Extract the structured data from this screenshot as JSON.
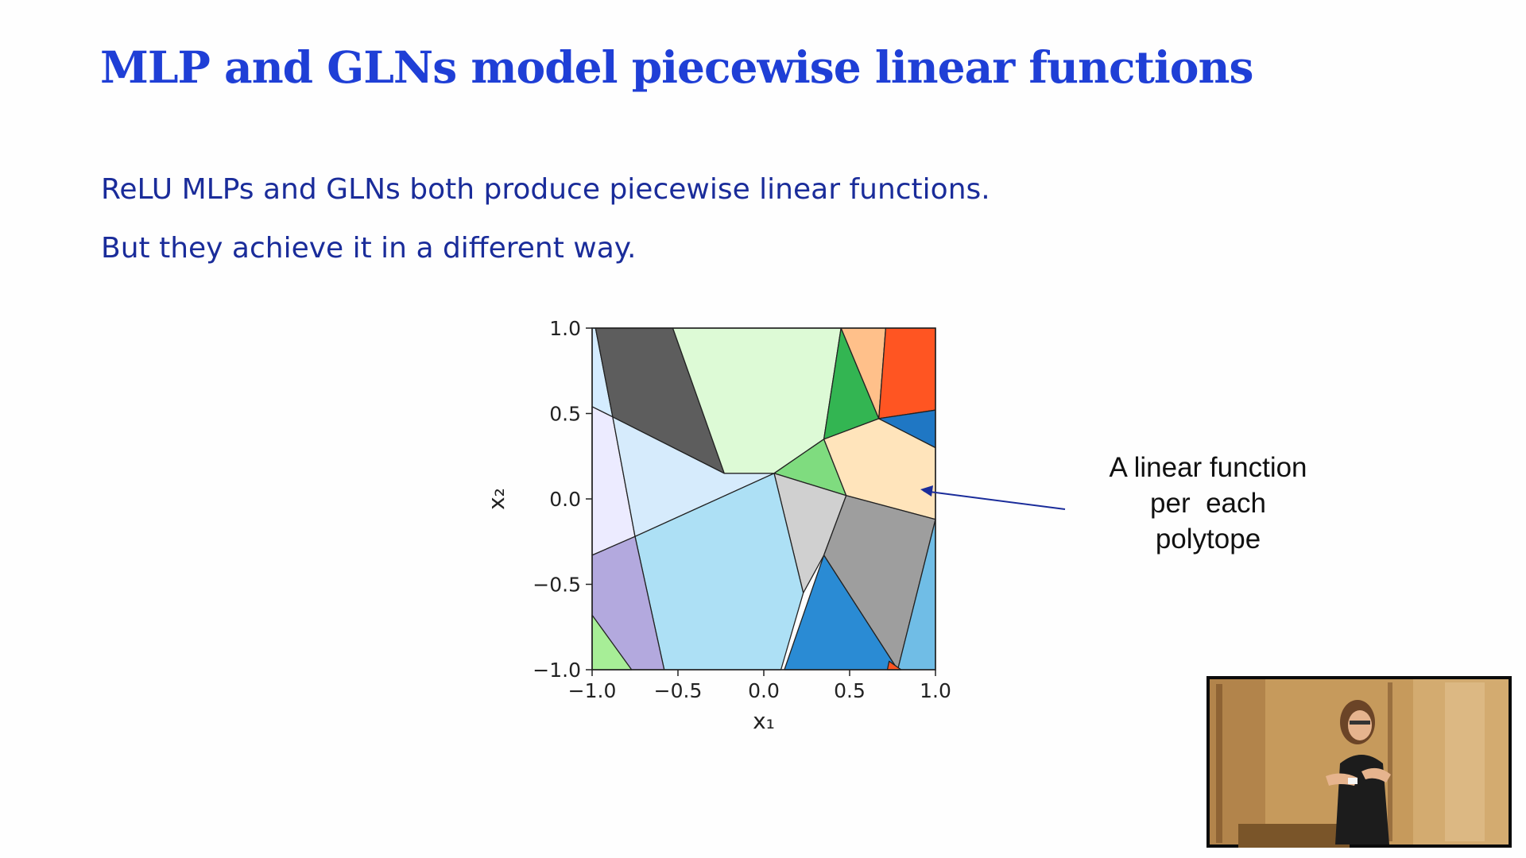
{
  "slide": {
    "title": "MLP and GLNs model piecewise linear functions",
    "bullets": [
      "ReLU MLPs and GLNs both produce piecewise linear functions.",
      "But they achieve it in a different way."
    ],
    "callout": [
      "A linear function",
      "per  each",
      "polytope"
    ]
  },
  "chart_data": {
    "type": "heatmap",
    "title": "",
    "xlabel": "x₁",
    "ylabel": "x₂",
    "xlim": [
      -1.0,
      1.0
    ],
    "ylim": [
      -1.0,
      1.0
    ],
    "xticks": [
      "−1.0",
      "−0.5",
      "0.0",
      "0.5",
      "1.0"
    ],
    "yticks": [
      "1.0",
      "0.5",
      "0.0",
      "−0.5",
      "−1.0"
    ],
    "grid": false,
    "legend": "none",
    "regions": [
      {
        "color": "#d4ecff",
        "points": [
          [
            -1,
            0.54
          ],
          [
            -0.23,
            0.15
          ],
          [
            -1,
            0.05
          ]
        ]
      },
      {
        "color": "#d4ecff",
        "points": [
          [
            -1,
            1
          ],
          [
            -0.98,
            1
          ],
          [
            -0.88,
            0.48
          ],
          [
            -1,
            0.54
          ]
        ]
      },
      {
        "color": "#ecebff",
        "points": [
          [
            -1,
            0.54
          ],
          [
            -0.88,
            0.48
          ],
          [
            -0.75,
            -0.22
          ],
          [
            -1,
            -0.33
          ]
        ]
      },
      {
        "color": "#d6ebfc",
        "points": [
          [
            -0.88,
            0.48
          ],
          [
            -0.23,
            0.15
          ],
          [
            0.06,
            0.15
          ],
          [
            -0.75,
            -0.22
          ]
        ]
      },
      {
        "color": "#5d5d5d",
        "points": [
          [
            -0.98,
            1
          ],
          [
            -0.53,
            1
          ],
          [
            -0.23,
            0.15
          ],
          [
            -0.88,
            0.48
          ]
        ]
      },
      {
        "color": "#ddfad6",
        "points": [
          [
            -0.53,
            1
          ],
          [
            0.45,
            1
          ],
          [
            0.35,
            0.35
          ],
          [
            0.06,
            0.15
          ],
          [
            -0.23,
            0.15
          ]
        ]
      },
      {
        "color": "#7fdc7f",
        "points": [
          [
            0.06,
            0.15
          ],
          [
            0.35,
            0.35
          ],
          [
            0.48,
            0.02
          ]
        ]
      },
      {
        "color": "#ffe4bb",
        "points": [
          [
            0.35,
            0.35
          ],
          [
            0.67,
            0.47
          ],
          [
            1,
            0.3
          ],
          [
            1,
            -0.12
          ],
          [
            0.48,
            0.02
          ]
        ]
      },
      {
        "color": "#33b552",
        "points": [
          [
            0.45,
            1
          ],
          [
            0.67,
            0.47
          ],
          [
            0.35,
            0.35
          ]
        ]
      },
      {
        "color": "#ffc08a",
        "points": [
          [
            0.45,
            1
          ],
          [
            0.71,
            1
          ],
          [
            0.67,
            0.47
          ]
        ]
      },
      {
        "color": "#ff5522",
        "points": [
          [
            0.71,
            1
          ],
          [
            1,
            1
          ],
          [
            1,
            0.52
          ],
          [
            0.67,
            0.47
          ]
        ]
      },
      {
        "color": "#1f77c4",
        "points": [
          [
            0.67,
            0.47
          ],
          [
            1,
            0.52
          ],
          [
            1,
            0.3
          ]
        ]
      },
      {
        "color": "#d0d0d0",
        "points": [
          [
            0.06,
            0.15
          ],
          [
            0.48,
            0.02
          ],
          [
            0.35,
            -0.33
          ],
          [
            0.23,
            -0.55
          ]
        ]
      },
      {
        "color": "#9e9e9e",
        "points": [
          [
            0.48,
            0.02
          ],
          [
            1,
            -0.12
          ],
          [
            0.78,
            -1
          ],
          [
            0.35,
            -0.33
          ]
        ]
      },
      {
        "color": "#ade0f5",
        "points": [
          [
            0.06,
            0.15
          ],
          [
            0.23,
            -0.55
          ],
          [
            0.1,
            -1
          ],
          [
            -0.58,
            -1
          ],
          [
            -0.75,
            -0.22
          ]
        ]
      },
      {
        "color": "#b3a9de",
        "points": [
          [
            -1,
            -0.33
          ],
          [
            -0.75,
            -0.22
          ],
          [
            -0.58,
            -1
          ],
          [
            -1,
            -1
          ]
        ]
      },
      {
        "color": "#a7ee97",
        "points": [
          [
            -1,
            -0.68
          ],
          [
            -0.77,
            -1
          ],
          [
            -1,
            -1
          ]
        ]
      },
      {
        "color": "#2a8bd4",
        "points": [
          [
            0.35,
            -0.33
          ],
          [
            0.78,
            -1
          ],
          [
            0.12,
            -1
          ]
        ]
      },
      {
        "color": "#70bde6",
        "points": [
          [
            1,
            -0.12
          ],
          [
            1,
            -1
          ],
          [
            0.78,
            -1
          ]
        ]
      },
      {
        "color": "#ff5522",
        "points": [
          [
            0.73,
            -0.95
          ],
          [
            0.8,
            -1
          ],
          [
            0.72,
            -1
          ]
        ]
      }
    ]
  }
}
